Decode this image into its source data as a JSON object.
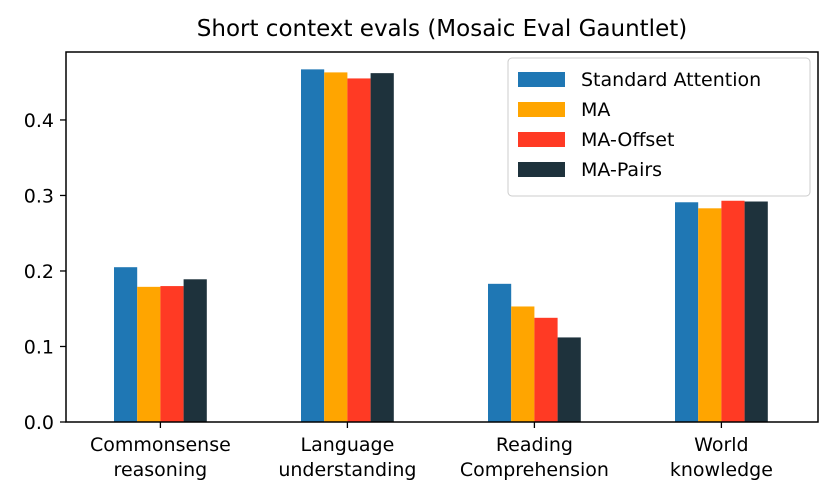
{
  "chart_data": {
    "type": "bar",
    "title": "Short context evals (Mosaic Eval Gauntlet)",
    "xlabel": "",
    "ylabel": "",
    "categories": [
      [
        "Commonsense",
        "reasoning"
      ],
      [
        "Language",
        "understanding"
      ],
      [
        "Reading",
        "Comprehension"
      ],
      [
        "World",
        "knowledge"
      ]
    ],
    "series": [
      {
        "name": "Standard Attention",
        "color": "#1f77b4",
        "values": [
          0.205,
          0.467,
          0.183,
          0.291
        ]
      },
      {
        "name": "MA",
        "color": "#ffa500",
        "values": [
          0.179,
          0.463,
          0.153,
          0.283
        ]
      },
      {
        "name": "MA-Offset",
        "color": "#ff3a24",
        "values": [
          0.18,
          0.455,
          0.138,
          0.293
        ]
      },
      {
        "name": "MA-Pairs",
        "color": "#1e323c",
        "values": [
          0.189,
          0.462,
          0.112,
          0.292
        ]
      }
    ],
    "ylim": [
      0,
      0.49
    ],
    "yticks": [
      "0.0",
      "0.1",
      "0.2",
      "0.3",
      "0.4"
    ],
    "grid": false,
    "legend": "top-right"
  }
}
